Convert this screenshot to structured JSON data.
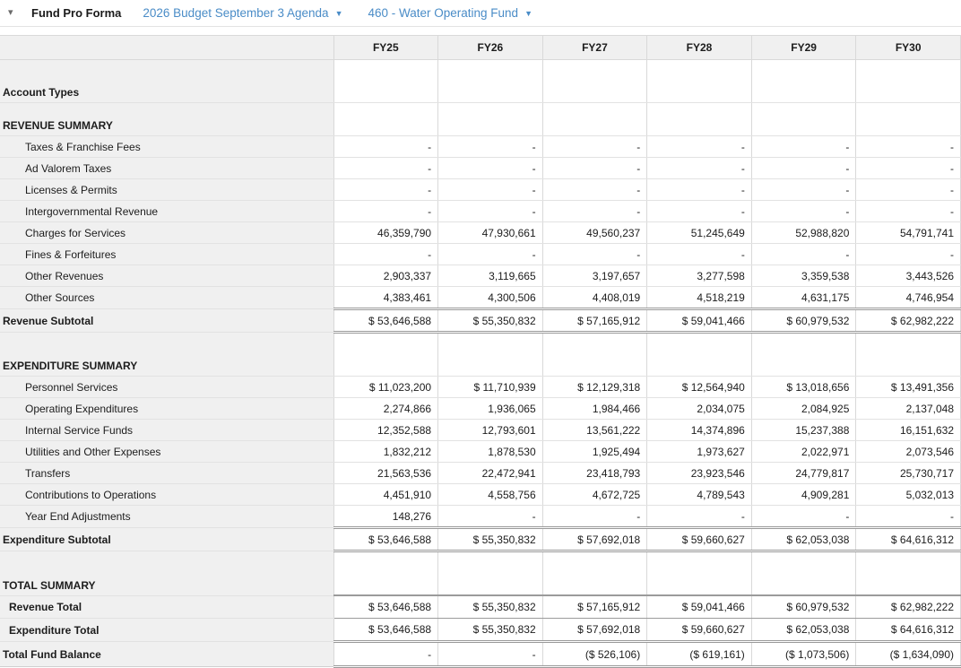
{
  "header": {
    "collapse_icon": "▾",
    "title": "Fund Pro Forma",
    "budget_dropdown": {
      "label": "2026 Budget September 3 Agenda",
      "arrow": "▼"
    },
    "fund_dropdown": {
      "label": "460 - Water Operating Fund",
      "arrow": "▼"
    }
  },
  "colors": {
    "link_blue": "#4a8cc7",
    "header_bg": "#f0f0f0",
    "grid_light": "#e2e2e2",
    "grid_mid": "#d9d9d9",
    "grid_dark": "#999999"
  },
  "table": {
    "corner_label": "",
    "columns": [
      "FY25",
      "FY26",
      "FY27",
      "FY28",
      "FY29",
      "FY30"
    ],
    "rows": [
      {
        "type": "group",
        "label": "Account Types",
        "cells": [
          "",
          "",
          "",
          "",
          "",
          ""
        ]
      },
      {
        "type": "group-sm",
        "label": "REVENUE SUMMARY",
        "cells": [
          "",
          "",
          "",
          "",
          "",
          ""
        ]
      },
      {
        "type": "detail",
        "label": "Taxes & Franchise Fees",
        "cells": [
          "-",
          "-",
          "-",
          "-",
          "-",
          "-"
        ]
      },
      {
        "type": "detail",
        "label": "Ad Valorem Taxes",
        "cells": [
          "-",
          "-",
          "-",
          "-",
          "-",
          "-"
        ]
      },
      {
        "type": "detail",
        "label": "Licenses & Permits",
        "cells": [
          "-",
          "-",
          "-",
          "-",
          "-",
          "-"
        ]
      },
      {
        "type": "detail",
        "label": "Intergovernmental Revenue",
        "cells": [
          "-",
          "-",
          "-",
          "-",
          "-",
          "-"
        ]
      },
      {
        "type": "detail",
        "label": "Charges for Services",
        "cells": [
          "46,359,790",
          "47,930,661",
          "49,560,237",
          "51,245,649",
          "52,988,820",
          "54,791,741"
        ]
      },
      {
        "type": "detail",
        "label": "Fines & Forfeitures",
        "cells": [
          "-",
          "-",
          "-",
          "-",
          "-",
          "-"
        ]
      },
      {
        "type": "detail",
        "label": "Other Revenues",
        "cells": [
          "2,903,337",
          "3,119,665",
          "3,197,657",
          "3,277,598",
          "3,359,538",
          "3,443,526"
        ]
      },
      {
        "type": "detail",
        "label": "Other Sources",
        "cells": [
          "4,383,461",
          "4,300,506",
          "4,408,019",
          "4,518,219",
          "4,631,175",
          "4,746,954"
        ]
      },
      {
        "type": "subtotal",
        "label": "Revenue Subtotal",
        "cells": [
          "$ 53,646,588",
          "$ 55,350,832",
          "$ 57,165,912",
          "$ 59,041,466",
          "$ 60,979,532",
          "$ 62,982,222"
        ]
      },
      {
        "type": "group",
        "label": "EXPENDITURE SUMMARY",
        "cells": [
          "",
          "",
          "",
          "",
          "",
          ""
        ]
      },
      {
        "type": "detail",
        "label": "Personnel Services",
        "cells": [
          "$ 11,023,200",
          "$ 11,710,939",
          "$ 12,129,318",
          "$ 12,564,940",
          "$ 13,018,656",
          "$ 13,491,356"
        ]
      },
      {
        "type": "detail",
        "label": "Operating Expenditures",
        "cells": [
          "2,274,866",
          "1,936,065",
          "1,984,466",
          "2,034,075",
          "2,084,925",
          "2,137,048"
        ]
      },
      {
        "type": "detail",
        "label": "Internal Service Funds",
        "cells": [
          "12,352,588",
          "12,793,601",
          "13,561,222",
          "14,374,896",
          "15,237,388",
          "16,151,632"
        ]
      },
      {
        "type": "detail",
        "label": "Utilities and Other Expenses",
        "cells": [
          "1,832,212",
          "1,878,530",
          "1,925,494",
          "1,973,627",
          "2,022,971",
          "2,073,546"
        ]
      },
      {
        "type": "detail",
        "label": "Transfers",
        "cells": [
          "21,563,536",
          "22,472,941",
          "23,418,793",
          "23,923,546",
          "24,779,817",
          "25,730,717"
        ]
      },
      {
        "type": "detail",
        "label": "Contributions to Operations",
        "cells": [
          "4,451,910",
          "4,558,756",
          "4,672,725",
          "4,789,543",
          "4,909,281",
          "5,032,013"
        ]
      },
      {
        "type": "detail",
        "label": "Year End Adjustments",
        "cells": [
          "148,276",
          "-",
          "-",
          "-",
          "-",
          "-"
        ]
      },
      {
        "type": "subtotal",
        "label": "Expenditure Subtotal",
        "cells": [
          "$ 53,646,588",
          "$ 55,350,832",
          "$ 57,692,018",
          "$ 59,660,627",
          "$ 62,053,038",
          "$ 64,616,312"
        ]
      },
      {
        "type": "group",
        "label": "TOTAL SUMMARY",
        "cells": [
          "",
          "",
          "",
          "",
          "",
          ""
        ]
      },
      {
        "type": "total",
        "label": "Revenue Total",
        "cells": [
          "$ 53,646,588",
          "$ 55,350,832",
          "$ 57,165,912",
          "$ 59,041,466",
          "$ 60,979,532",
          "$ 62,982,222"
        ]
      },
      {
        "type": "total-end",
        "label": "Expenditure Total",
        "cells": [
          "$ 53,646,588",
          "$ 55,350,832",
          "$ 57,692,018",
          "$ 59,660,627",
          "$ 62,053,038",
          "$ 64,616,312"
        ]
      },
      {
        "type": "grand",
        "label": "Total Fund Balance",
        "cells": [
          "-",
          "-",
          "($ 526,106)",
          "($ 619,161)",
          "($ 1,073,506)",
          "($ 1,634,090)"
        ]
      }
    ]
  }
}
